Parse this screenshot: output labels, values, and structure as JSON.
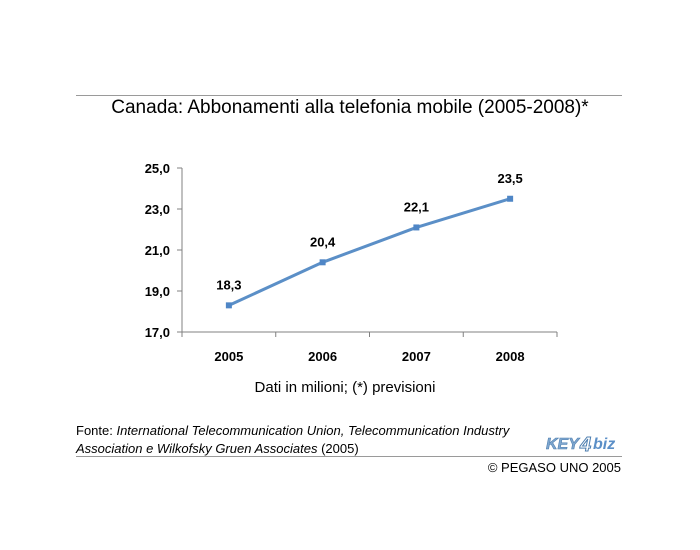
{
  "header": {
    "title": "Canada: Abbonamenti alla telefonia mobile (2005-2008)*"
  },
  "chart_data": {
    "type": "line",
    "title": "Canada: Abbonamenti alla telefonia mobile (2005-2008)*",
    "categories": [
      "2005",
      "2006",
      "2007",
      "2008"
    ],
    "series": [
      {
        "values": [
          18.3,
          20.4,
          22.1,
          23.5
        ],
        "labels": [
          "18,3",
          "20,4",
          "22,1",
          "23,5"
        ]
      }
    ],
    "y_ticks": [
      "17,0",
      "19,0",
      "21,0",
      "23,0",
      "25,0"
    ],
    "ylim": [
      17,
      25
    ],
    "grid": false,
    "legend": "none",
    "colors": {
      "line": "#5b8fc7",
      "marker": "#4f86c6",
      "axis": "#808080"
    }
  },
  "caption": "Dati in milioni; (*) previsioni",
  "source": {
    "prefix": "Fonte: ",
    "text1": "International Telecommunication Union, Telecommunication Industry",
    "text2": "Association  e Wilkofsky Gruen Associates",
    "suffix": " (2005)"
  },
  "logo": {
    "text_left": "KEY",
    "text_right": "biz",
    "number": "4"
  },
  "copyright": "© PEGASO UNO 2005"
}
